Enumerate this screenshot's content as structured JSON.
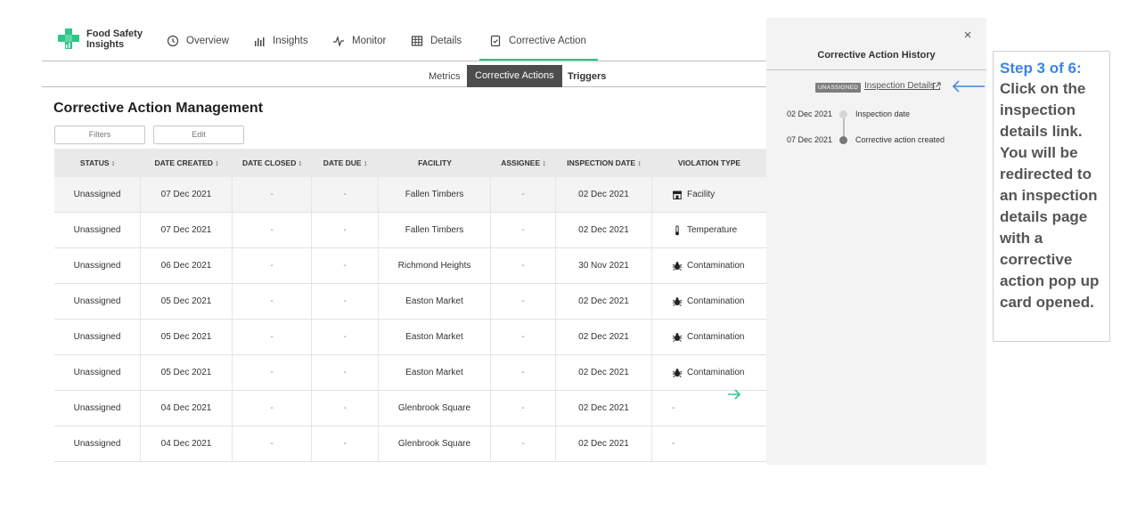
{
  "app": {
    "logo_line1": "Food Safety",
    "logo_line2": "Insights",
    "nav": [
      {
        "label": "Overview",
        "icon": "clock-icon"
      },
      {
        "label": "Insights",
        "icon": "bar-chart-icon"
      },
      {
        "label": "Monitor",
        "icon": "pulse-icon"
      },
      {
        "label": "Details",
        "icon": "table-icon"
      },
      {
        "label": "Corrective Action",
        "icon": "checklist-icon",
        "active": true
      }
    ],
    "subtabs": [
      "Metrics",
      "Corrective Actions",
      "Triggers"
    ],
    "active_subtab": "Corrective Actions"
  },
  "page": {
    "title": "Corrective Action Management",
    "filters_label": "Filters",
    "edit_label": "Edit"
  },
  "table": {
    "headers": [
      "STATUS ↕",
      "DATE CREATED ↕",
      "DATE CLOSED ↕",
      "DATE DUE ↕",
      "FACILITY",
      "ASSIGNEE ↕",
      "INSPECTION DATE ↕",
      "VIOLATION TYPE"
    ],
    "rows": [
      {
        "status": "Unassigned",
        "created": "07 Dec 2021",
        "closed": "-",
        "due": "-",
        "facility": "Fallen Timbers",
        "assignee": "-",
        "inspection": "02 Dec 2021",
        "violation": "Facility",
        "vicon": "storefront-icon"
      },
      {
        "status": "Unassigned",
        "created": "07 Dec 2021",
        "closed": "-",
        "due": "-",
        "facility": "Fallen Timbers",
        "assignee": "-",
        "inspection": "02 Dec 2021",
        "violation": "Temperature",
        "vicon": "thermometer-icon"
      },
      {
        "status": "Unassigned",
        "created": "06 Dec 2021",
        "closed": "-",
        "due": "-",
        "facility": "Richmond Heights",
        "assignee": "-",
        "inspection": "30 Nov 2021",
        "violation": "Contamination",
        "vicon": "bug-icon"
      },
      {
        "status": "Unassigned",
        "created": "05 Dec 2021",
        "closed": "-",
        "due": "-",
        "facility": "Easton Market",
        "assignee": "-",
        "inspection": "02 Dec 2021",
        "violation": "Contamination",
        "vicon": "bug-icon"
      },
      {
        "status": "Unassigned",
        "created": "05 Dec 2021",
        "closed": "-",
        "due": "-",
        "facility": "Easton Market",
        "assignee": "-",
        "inspection": "02 Dec 2021",
        "violation": "Contamination",
        "vicon": "bug-icon"
      },
      {
        "status": "Unassigned",
        "created": "05 Dec 2021",
        "closed": "-",
        "due": "-",
        "facility": "Easton Market",
        "assignee": "-",
        "inspection": "02 Dec 2021",
        "violation": "Contamination",
        "vicon": "bug-icon"
      },
      {
        "status": "Unassigned",
        "created": "04 Dec 2021",
        "closed": "-",
        "due": "-",
        "facility": "Glenbrook Square",
        "assignee": "-",
        "inspection": "02 Dec 2021",
        "violation": "-",
        "vicon": ""
      },
      {
        "status": "Unassigned",
        "created": "04 Dec 2021",
        "closed": "-",
        "due": "-",
        "facility": "Glenbrook Square",
        "assignee": "-",
        "inspection": "02 Dec 2021",
        "violation": "-",
        "vicon": ""
      }
    ]
  },
  "panel": {
    "title": "Corrective Action History",
    "close_symbol": "×",
    "badge": "UNASSIGNED",
    "link": "Inspection Details",
    "timeline": [
      {
        "date": "02 Dec 2021",
        "label": "Inspection date"
      },
      {
        "date": "07 Dec 2021",
        "label": "Corrective action created"
      }
    ]
  },
  "step": {
    "heading": "Step 3 of 6:",
    "body": "Click on the inspection details link. You will be redirected to an inspection details page with a corrective action pop up card opened."
  },
  "colors": {
    "accent_green": "#2fc587",
    "step_blue": "#3a85e6",
    "active_tab_bg": "#4d4d4d"
  }
}
